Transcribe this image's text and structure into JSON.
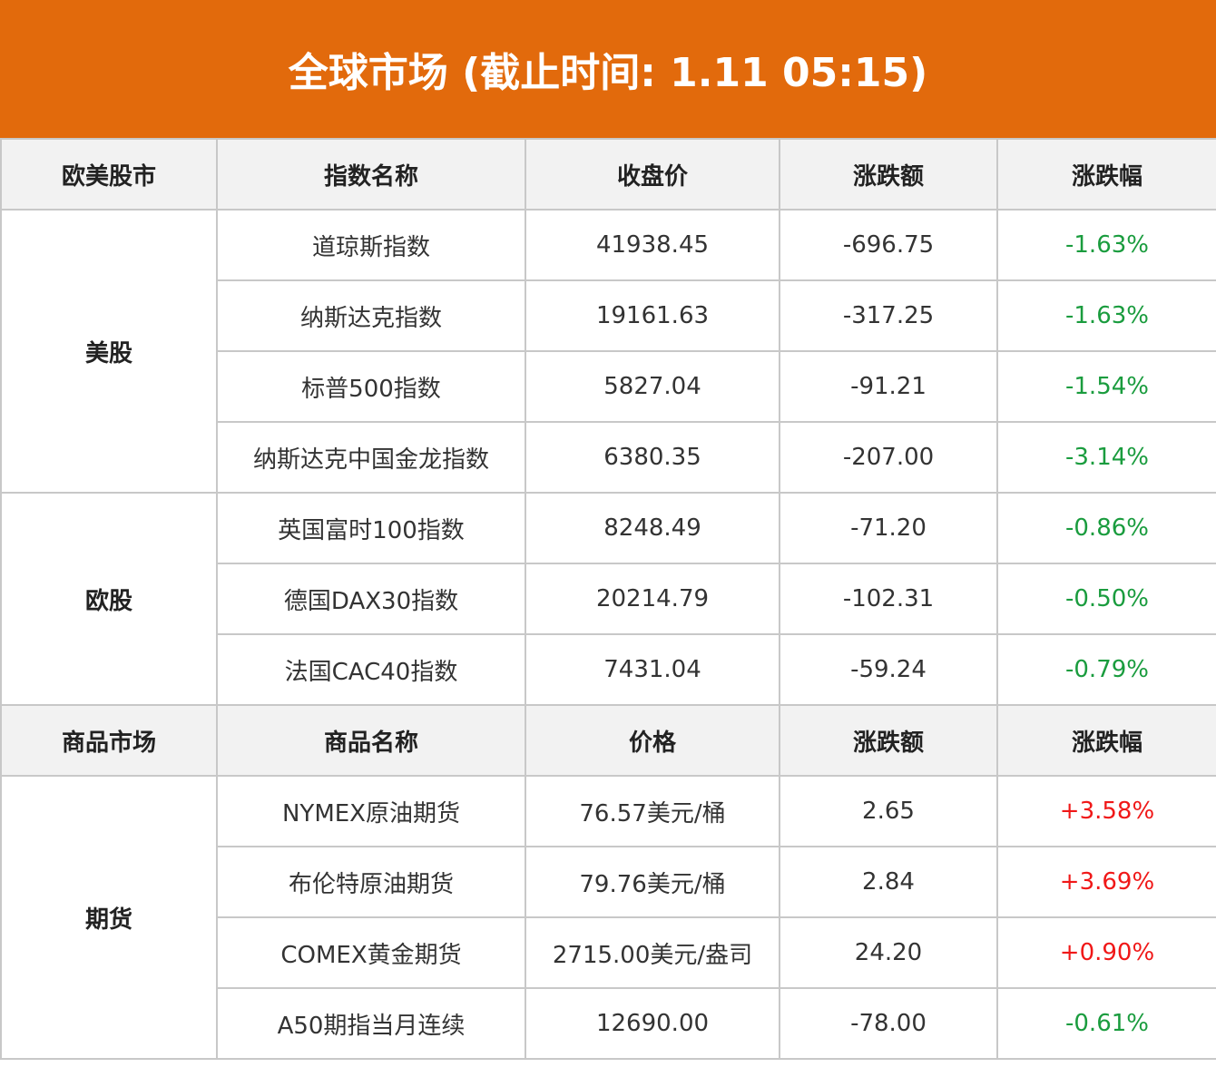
{
  "title": "全球市场 (截止时间: 1.11 05:15)",
  "colors": {
    "header_bg": "#e26a0c",
    "up": "#f01818",
    "down": "#1a9c3e"
  },
  "section1": {
    "headers": [
      "欧美股市",
      "指数名称",
      "收盘价",
      "涨跌额",
      "涨跌幅"
    ],
    "groups": [
      {
        "name": "美股",
        "rows": [
          {
            "name": "道琼斯指数",
            "price": "41938.45",
            "change": "-696.75",
            "pct": "-1.63%"
          },
          {
            "name": "纳斯达克指数",
            "price": "19161.63",
            "change": "-317.25",
            "pct": "-1.63%"
          },
          {
            "name": "标普500指数",
            "price": "5827.04",
            "change": "-91.21",
            "pct": "-1.54%"
          },
          {
            "name": "纳斯达克中国金龙指数",
            "price": "6380.35",
            "change": "-207.00",
            "pct": "-3.14%"
          }
        ]
      },
      {
        "name": "欧股",
        "rows": [
          {
            "name": "英国富时100指数",
            "price": "8248.49",
            "change": "-71.20",
            "pct": "-0.86%"
          },
          {
            "name": "德国DAX30指数",
            "price": "20214.79",
            "change": "-102.31",
            "pct": "-0.50%"
          },
          {
            "name": "法国CAC40指数",
            "price": "7431.04",
            "change": "-59.24",
            "pct": "-0.79%"
          }
        ]
      }
    ]
  },
  "section2": {
    "headers": [
      "商品市场",
      "商品名称",
      "价格",
      "涨跌额",
      "涨跌幅"
    ],
    "groups": [
      {
        "name": "期货",
        "rows": [
          {
            "name": "NYMEX原油期货",
            "price": "76.57美元/桶",
            "change": "2.65",
            "pct": "+3.58%"
          },
          {
            "name": "布伦特原油期货",
            "price": "79.76美元/桶",
            "change": "2.84",
            "pct": "+3.69%"
          },
          {
            "name": "COMEX黄金期货",
            "price": "2715.00美元/盎司",
            "change": "24.20",
            "pct": "+0.90%"
          },
          {
            "name": "A50期指当月连续",
            "price": "12690.00",
            "change": "-78.00",
            "pct": "-0.61%"
          }
        ]
      }
    ]
  }
}
